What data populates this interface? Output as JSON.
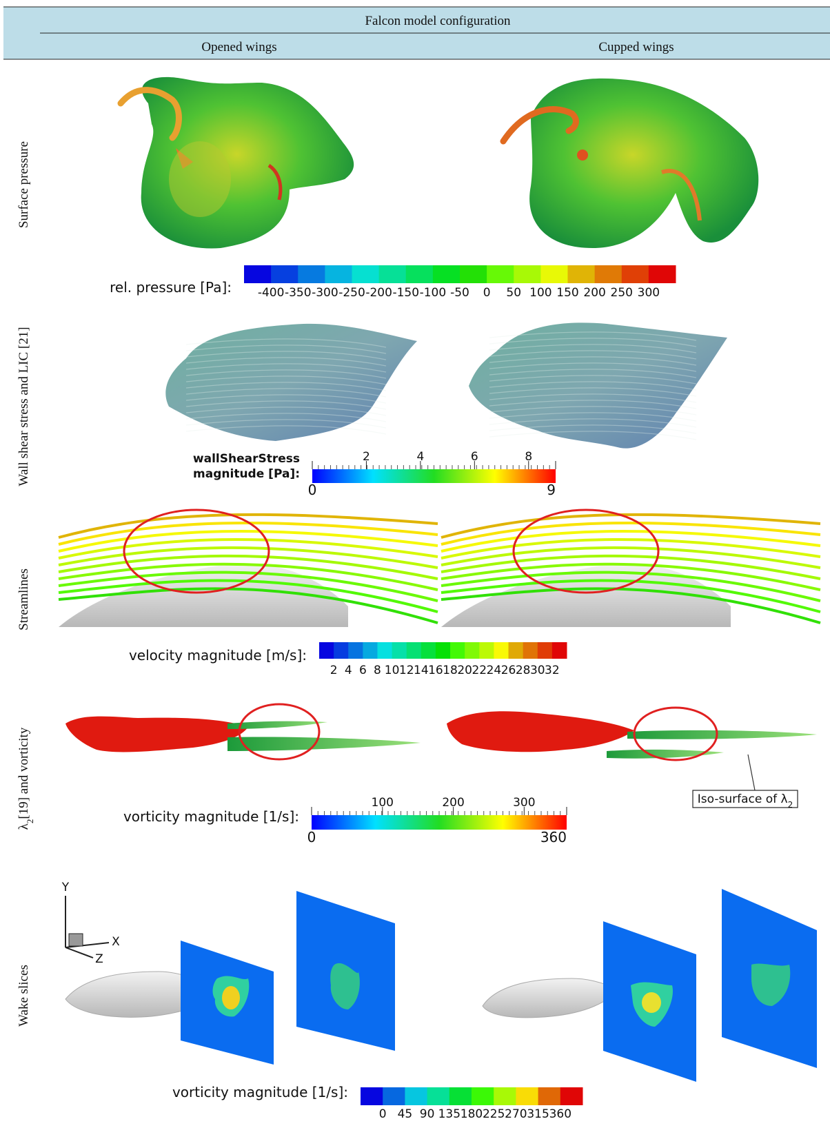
{
  "header": {
    "title": "Falcon model configuration",
    "columns": [
      "Opened wings",
      "Cupped wings"
    ]
  },
  "rows": [
    {
      "label": "Surface pressure",
      "colorbar": {
        "label": [
          "rel. pressure [Pa]:"
        ],
        "ticks": [
          -400,
          -350,
          -300,
          -250,
          -200,
          -150,
          -100,
          -50,
          0,
          50,
          100,
          150,
          200,
          250,
          300
        ]
      }
    },
    {
      "label": "Wall shear stress and LIC [21]",
      "colorbar": {
        "label": [
          "wallShearStress",
          "magnitude [Pa]:"
        ],
        "min": 0,
        "max": 9,
        "ticks": [
          2,
          4,
          6,
          8
        ]
      }
    },
    {
      "label": "Streamlines",
      "colorbar": {
        "label": [
          "velocity magnitude [m/s]:"
        ],
        "ticks": [
          2,
          4,
          6,
          8,
          10,
          12,
          14,
          16,
          18,
          20,
          22,
          24,
          26,
          28,
          30,
          32
        ]
      }
    },
    {
      "label_symbol": "λ",
      "label_subscript": "2",
      "label_rest": "[19] and vorticity",
      "colorbar": {
        "label": [
          "vorticity magnitude [1/s]:"
        ],
        "min": 0,
        "max": 360,
        "ticks": [
          100,
          200,
          300
        ]
      },
      "annotation": {
        "text": "Iso-surface of λ",
        "subscript": "2"
      }
    },
    {
      "label": "Wake slices",
      "axes": [
        "Y",
        "X",
        "Z"
      ],
      "colorbar": {
        "label": [
          "vorticity magnitude [1/s]:"
        ],
        "ticks": [
          0,
          45,
          90,
          135,
          180,
          225,
          270,
          315,
          360
        ]
      }
    }
  ]
}
